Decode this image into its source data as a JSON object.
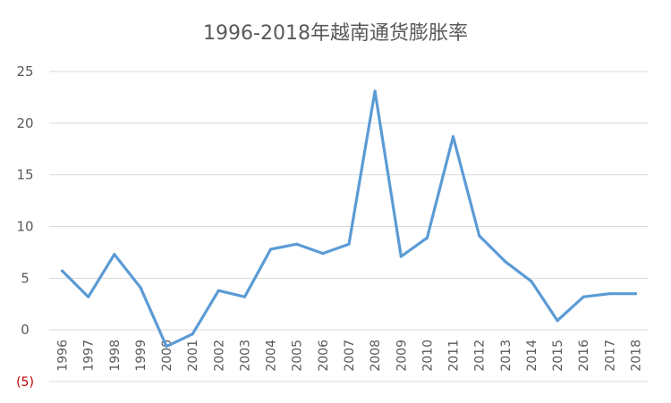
{
  "chart_data": {
    "type": "line",
    "title": "1996-2018年越南通货膨胀率",
    "xlabel": "",
    "ylabel": "",
    "categories": [
      "1996",
      "1997",
      "1998",
      "1999",
      "2000",
      "2001",
      "2002",
      "2003",
      "2004",
      "2005",
      "2006",
      "2007",
      "2008",
      "2009",
      "2010",
      "2011",
      "2012",
      "2013",
      "2014",
      "2015",
      "2016",
      "2017",
      "2018"
    ],
    "series": [
      {
        "values": [
          5.7,
          3.2,
          7.3,
          4.1,
          -1.6,
          -0.4,
          3.8,
          3.2,
          7.8,
          8.3,
          7.4,
          8.3,
          23.1,
          7.1,
          8.9,
          18.7,
          9.1,
          6.6,
          4.7,
          0.9,
          3.2,
          3.5,
          3.5
        ],
        "color": "#5b9bd5"
      }
    ],
    "ylim": [
      -5,
      25
    ],
    "yticks": [
      {
        "value": 25,
        "label": "25"
      },
      {
        "value": 20,
        "label": "20"
      },
      {
        "value": 15,
        "label": "15"
      },
      {
        "value": 10,
        "label": "10"
      },
      {
        "value": 5,
        "label": "5"
      },
      {
        "value": 0,
        "label": "0"
      },
      {
        "value": -5,
        "label": "(5)"
      }
    ],
    "grid": true,
    "legend": "none",
    "colors": {
      "line": "#5b9bd5",
      "negative_tick": "#c00000",
      "text": "#595959",
      "grid": "#d9d9d9"
    }
  }
}
